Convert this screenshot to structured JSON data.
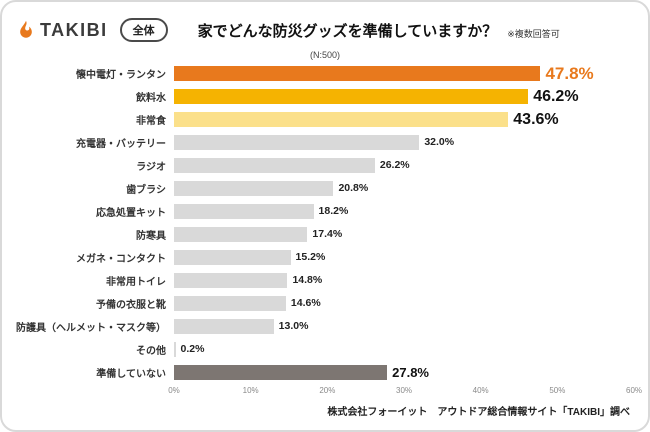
{
  "header": {
    "brand": "TAKIBI",
    "badge": "全体",
    "title": "家でどんな防災グッズを準備していますか？",
    "note": "※複数回答可"
  },
  "colors": {
    "accent_orange": "#E8791D",
    "gold": "#F5B301",
    "pale_yellow": "#FBE08A",
    "gray_bar": "#D9D9D9",
    "dark_bar": "#7D7672"
  },
  "chart_data": {
    "type": "bar",
    "orientation": "horizontal",
    "subtitle": "(N:500)",
    "xlim": [
      0,
      60
    ],
    "x_ticks": [
      "0%",
      "10%",
      "20%",
      "30%",
      "40%",
      "50%",
      "60%"
    ],
    "grid": false,
    "legend": false,
    "bars": [
      {
        "label": "懐中電灯・ランタン",
        "value": 47.8,
        "display": "47.8%",
        "color": "#E8791D",
        "value_style": "xl-orange",
        "value_color": "#E8791D"
      },
      {
        "label": "飲料水",
        "value": 46.2,
        "display": "46.2%",
        "color": "#F5B301",
        "value_style": "xl"
      },
      {
        "label": "非常食",
        "value": 43.6,
        "display": "43.6%",
        "color": "#FBE08A",
        "value_style": "xl"
      },
      {
        "label": "充電器・バッテリー",
        "value": 32.0,
        "display": "32.0%",
        "color": "#D9D9D9",
        "value_style": "sm"
      },
      {
        "label": "ラジオ",
        "value": 26.2,
        "display": "26.2%",
        "color": "#D9D9D9",
        "value_style": "sm"
      },
      {
        "label": "歯ブラシ",
        "value": 20.8,
        "display": "20.8%",
        "color": "#D9D9D9",
        "value_style": "sm"
      },
      {
        "label": "応急処置キット",
        "value": 18.2,
        "display": "18.2%",
        "color": "#D9D9D9",
        "value_style": "sm"
      },
      {
        "label": "防寒具",
        "value": 17.4,
        "display": "17.4%",
        "color": "#D9D9D9",
        "value_style": "sm"
      },
      {
        "label": "メガネ・コンタクト",
        "value": 15.2,
        "display": "15.2%",
        "color": "#D9D9D9",
        "value_style": "sm"
      },
      {
        "label": "非常用トイレ",
        "value": 14.8,
        "display": "14.8%",
        "color": "#D9D9D9",
        "value_style": "sm"
      },
      {
        "label": "予備の衣服と靴",
        "value": 14.6,
        "display": "14.6%",
        "color": "#D9D9D9",
        "value_style": "sm"
      },
      {
        "label": "防護具（ヘルメット・マスク等）",
        "value": 13.0,
        "display": "13.0%",
        "color": "#D9D9D9",
        "value_style": "sm"
      },
      {
        "label": "その他",
        "value": 0.2,
        "display": "0.2%",
        "color": "#D9D9D9",
        "value_style": "sm"
      },
      {
        "label": "準備していない",
        "value": 27.8,
        "display": "27.8%",
        "color": "#7D7672",
        "value_style": "md"
      }
    ]
  },
  "footer": {
    "credit": "株式会社フォーイット　アウトドア総合情報サイト「TAKIBI」調べ"
  }
}
